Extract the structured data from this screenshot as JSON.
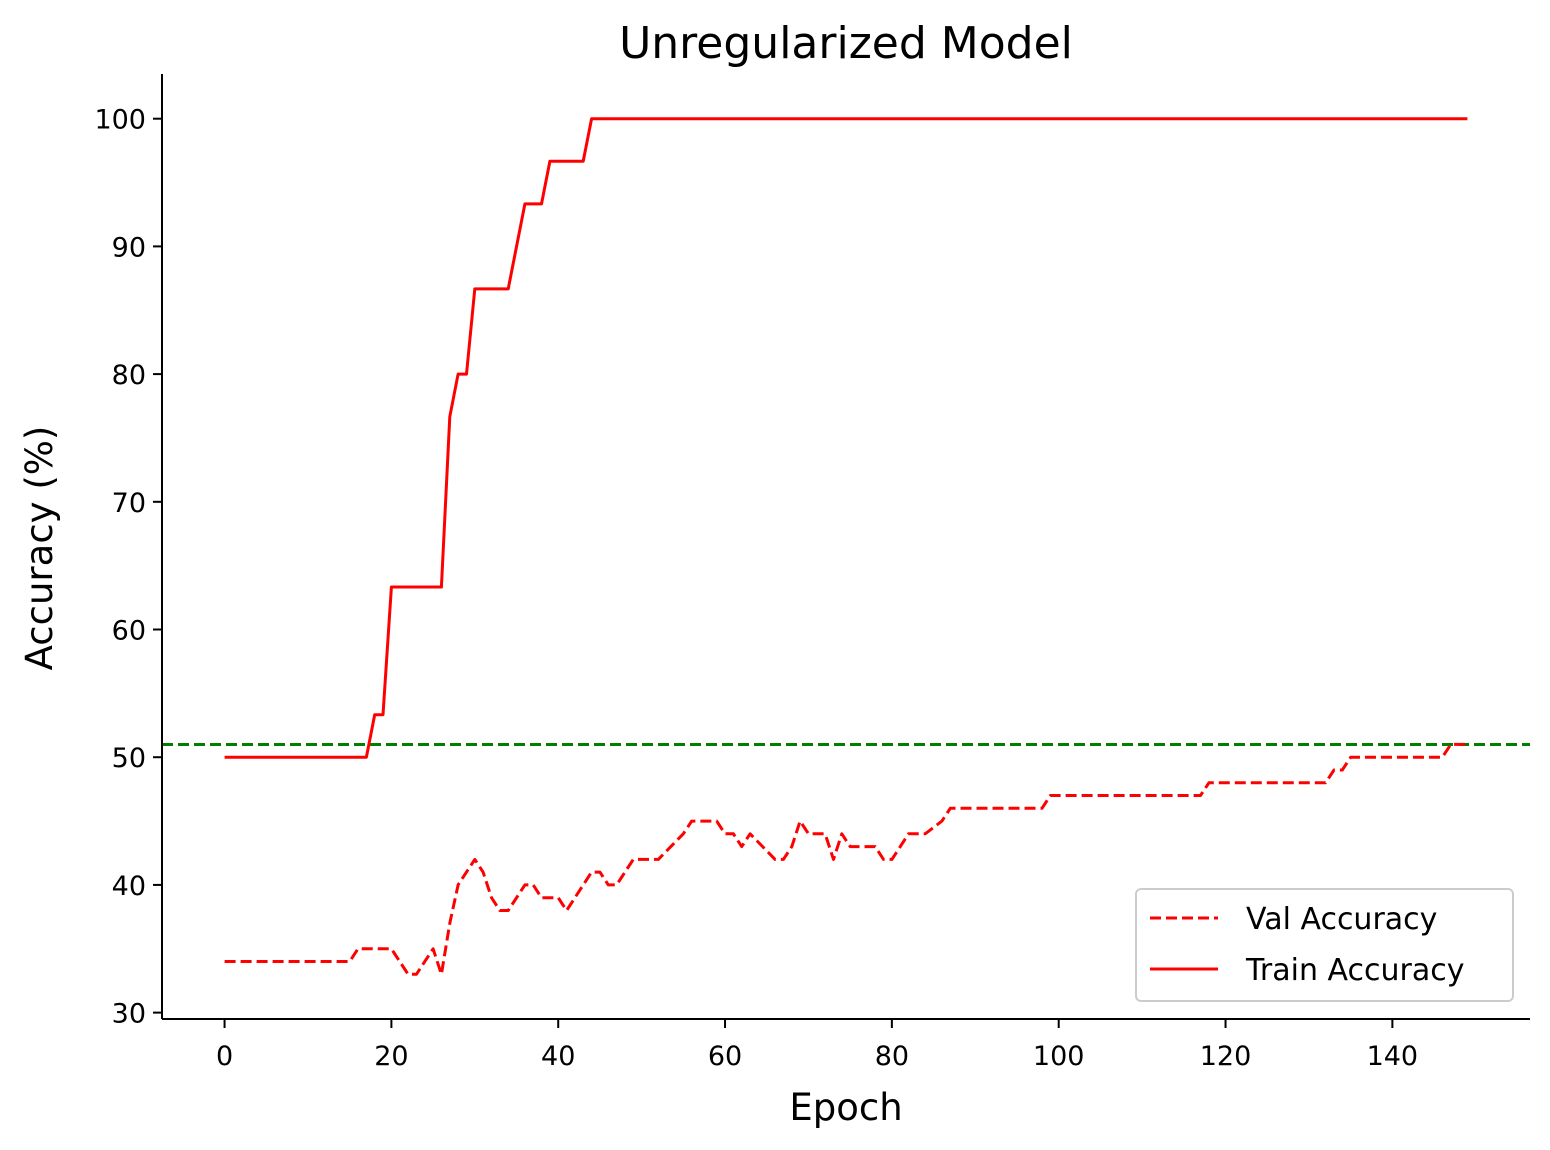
{
  "chart_data": {
    "type": "line",
    "title": "Unregularized Model",
    "xlabel": "Epoch",
    "ylabel": "Accuracy (%)",
    "xlim": [
      -7.5,
      156.5
    ],
    "ylim": [
      29.5,
      103.5
    ],
    "xticks": [
      0,
      20,
      40,
      60,
      80,
      100,
      120,
      140
    ],
    "yticks": [
      30,
      40,
      50,
      60,
      70,
      80,
      90,
      100
    ],
    "grid": false,
    "legend": "bottom-right",
    "baseline": {
      "y": 51,
      "color": "#008000",
      "style": "dashed"
    },
    "series": [
      {
        "name": "Val Accuracy",
        "color": "#ff0000",
        "style": "dashed",
        "points": [
          [
            0,
            34
          ],
          [
            15,
            34
          ],
          [
            16,
            35
          ],
          [
            20,
            35
          ],
          [
            22,
            33
          ],
          [
            23,
            33
          ],
          [
            25,
            35
          ],
          [
            26,
            33
          ],
          [
            27,
            37
          ],
          [
            28,
            40
          ],
          [
            30,
            42
          ],
          [
            31,
            41
          ],
          [
            32,
            39
          ],
          [
            33,
            38
          ],
          [
            34,
            38
          ],
          [
            36,
            40
          ],
          [
            37,
            40
          ],
          [
            38,
            39
          ],
          [
            40,
            39
          ],
          [
            41,
            38
          ],
          [
            44,
            41
          ],
          [
            45,
            41
          ],
          [
            46,
            40
          ],
          [
            47,
            40
          ],
          [
            49,
            42
          ],
          [
            52,
            42
          ],
          [
            55,
            44
          ],
          [
            56,
            45
          ],
          [
            59,
            45
          ],
          [
            60,
            44
          ],
          [
            61,
            44
          ],
          [
            62,
            43
          ],
          [
            63,
            44
          ],
          [
            66,
            42
          ],
          [
            67,
            42
          ],
          [
            68,
            43
          ],
          [
            69,
            45
          ],
          [
            70,
            44
          ],
          [
            72,
            44
          ],
          [
            73,
            42
          ],
          [
            74,
            44
          ],
          [
            75,
            43
          ],
          [
            78,
            43
          ],
          [
            79,
            42
          ],
          [
            80,
            42
          ],
          [
            82,
            44
          ],
          [
            84,
            44
          ],
          [
            86,
            45
          ],
          [
            87,
            46
          ],
          [
            98,
            46
          ],
          [
            99,
            47
          ],
          [
            117,
            47
          ],
          [
            118,
            48
          ],
          [
            132,
            48
          ],
          [
            133,
            49
          ],
          [
            134,
            49
          ],
          [
            135,
            50
          ],
          [
            146,
            50
          ],
          [
            147,
            51
          ],
          [
            149,
            51
          ]
        ]
      },
      {
        "name": "Train Accuracy",
        "color": "#ff0000",
        "style": "solid",
        "points": [
          [
            0,
            50
          ],
          [
            17,
            50
          ],
          [
            18,
            53.33
          ],
          [
            19,
            53.33
          ],
          [
            20,
            63.33
          ],
          [
            26,
            63.33
          ],
          [
            27,
            76.67
          ],
          [
            28,
            80
          ],
          [
            29,
            80
          ],
          [
            30,
            86.67
          ],
          [
            34,
            86.67
          ],
          [
            36,
            93.33
          ],
          [
            38,
            93.33
          ],
          [
            39,
            96.67
          ],
          [
            43,
            96.67
          ],
          [
            44,
            100
          ],
          [
            149,
            100
          ]
        ]
      }
    ]
  }
}
